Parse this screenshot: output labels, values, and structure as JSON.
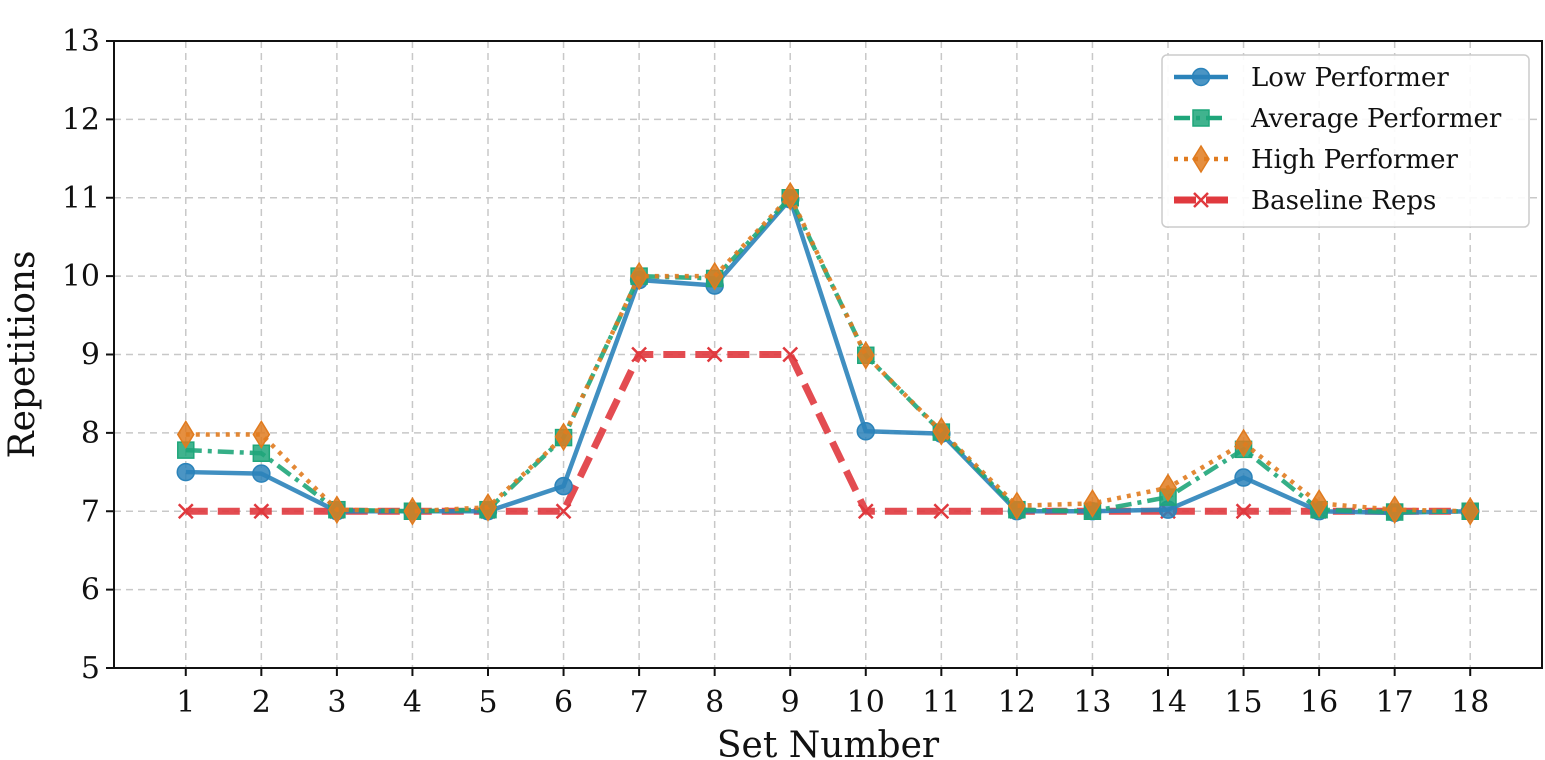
{
  "chart_data": {
    "type": "line",
    "title": "",
    "xlabel": "Set Number",
    "ylabel": "Repetitions",
    "x": [
      1,
      2,
      3,
      4,
      5,
      6,
      7,
      8,
      9,
      10,
      11,
      12,
      13,
      14,
      15,
      16,
      17,
      18
    ],
    "xlim": [
      0.05,
      18.95
    ],
    "ylim": [
      5,
      13
    ],
    "yticks": [
      5,
      6,
      7,
      8,
      9,
      10,
      11,
      12,
      13
    ],
    "grid": true,
    "legend_position": "top-right",
    "series": [
      {
        "name": "Low Performer",
        "color": "#2b83ba",
        "line_style": "solid",
        "marker": "circle",
        "values": [
          7.5,
          7.48,
          7.0,
          7.0,
          7.0,
          7.32,
          9.95,
          9.88,
          10.98,
          8.02,
          7.99,
          7.0,
          7.0,
          7.02,
          7.43,
          7.0,
          6.98,
          7.0
        ]
      },
      {
        "name": "Average Performer",
        "color": "#1fa67a",
        "line_style": "dashdot",
        "marker": "square",
        "values": [
          7.78,
          7.74,
          7.02,
          7.0,
          7.02,
          7.94,
          10.0,
          9.97,
          11.0,
          8.99,
          8.01,
          7.02,
          7.0,
          7.18,
          7.79,
          7.02,
          6.99,
          7.0
        ]
      },
      {
        "name": "High Performer",
        "color": "#e07b1f",
        "line_style": "dotted",
        "marker": "diamond",
        "values": [
          7.98,
          7.98,
          7.02,
          7.0,
          7.05,
          7.95,
          10.0,
          10.0,
          11.02,
          8.99,
          8.02,
          7.07,
          7.1,
          7.3,
          7.87,
          7.1,
          7.02,
          7.0
        ]
      },
      {
        "name": "Baseline Reps",
        "color": "#e0393e",
        "line_style": "dashed",
        "marker": "x",
        "values": [
          7,
          7,
          7,
          7,
          7,
          7,
          9,
          9,
          9,
          7,
          7,
          7,
          7,
          7,
          7,
          7,
          7,
          7
        ]
      }
    ]
  }
}
